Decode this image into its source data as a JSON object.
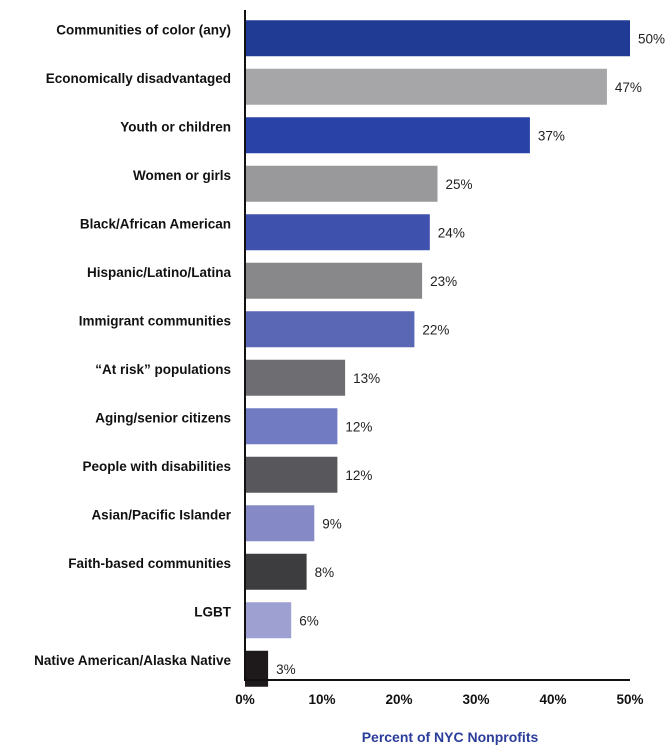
{
  "chart_data": {
    "type": "bar",
    "orientation": "horizontal",
    "title": "",
    "xlabel": "Percent of NYC Nonprofits",
    "ylabel": "",
    "xlim": [
      0,
      50
    ],
    "xticks": [
      "0%",
      "10%",
      "20%",
      "30%",
      "40%",
      "50%"
    ],
    "grid": false,
    "categories": [
      "Communities of color (any)",
      "Economically disadvantaged",
      "Youth or children",
      "Women or girls",
      "Black/African American",
      "Hispanic/Latino/Latina",
      "Immigrant communities",
      "“At risk” populations",
      "Aging/senior citizens",
      "People with disabilities",
      "Asian/Pacific Islander",
      "Faith-based communities",
      "LGBT",
      "Native American/Alaska Native"
    ],
    "values": [
      50,
      47,
      37,
      25,
      24,
      23,
      22,
      13,
      12,
      12,
      9,
      8,
      6,
      3
    ],
    "value_labels": [
      "50%",
      "47%",
      "37%",
      "25%",
      "24%",
      "23%",
      "22%",
      "13%",
      "12%",
      "12%",
      "9%",
      "8%",
      "6%",
      "3%"
    ],
    "colors": [
      "#1f3b93",
      "#a6a6a9",
      "#2842a8",
      "#99999c",
      "#3e52ad",
      "#88888b",
      "#5a67b5",
      "#6e6e72",
      "#717bc2",
      "#58585c",
      "#8589c6",
      "#3d3d40",
      "#9da0d1",
      "#1e1a1c"
    ],
    "axis_title_color": "#2a3d9a"
  }
}
